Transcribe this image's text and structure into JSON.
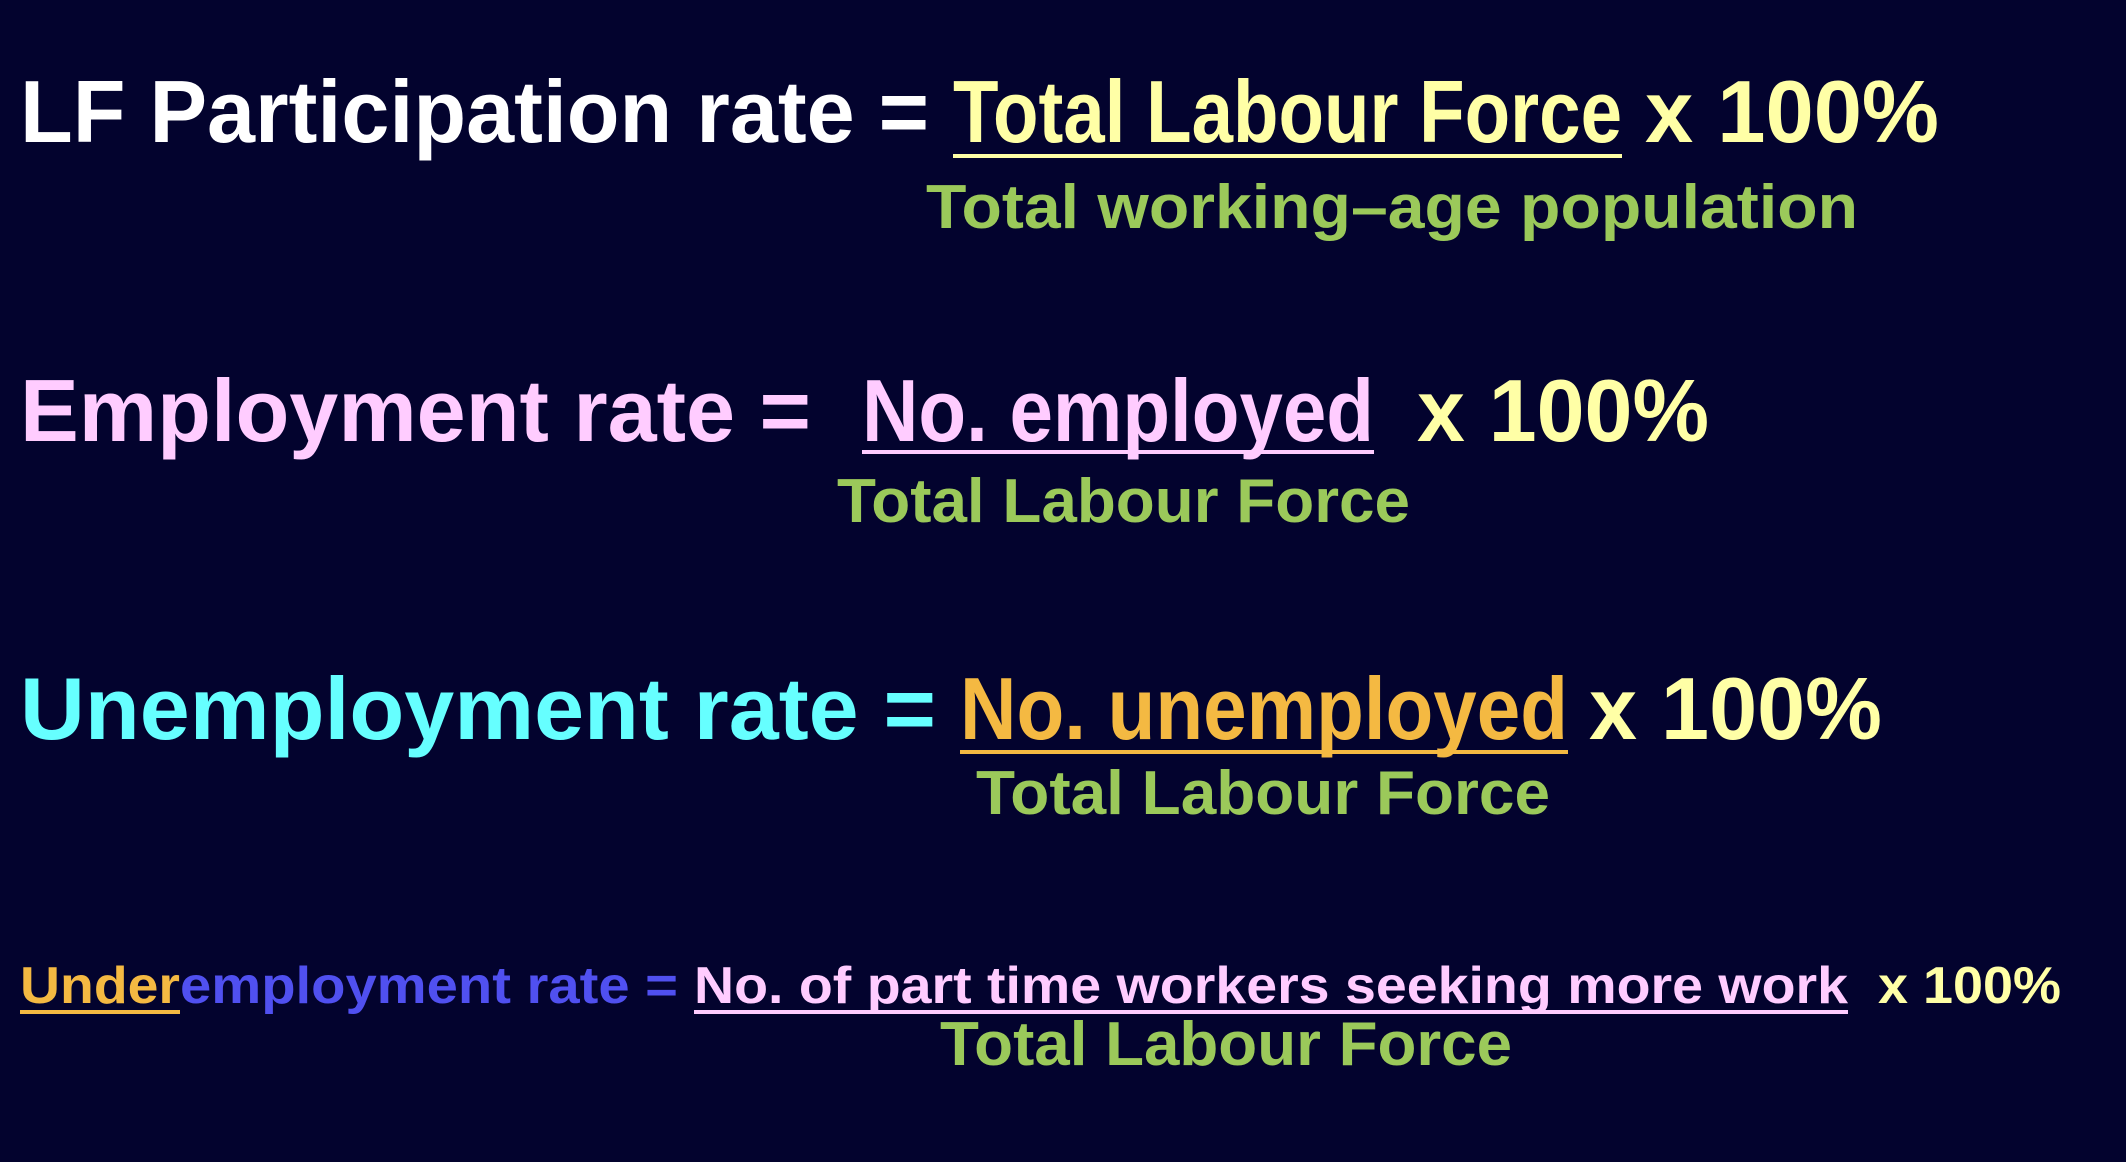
{
  "formulas": [
    {
      "label": "LF Participation rate =",
      "numerator": "Total Labour Force",
      "multiplier": "x 100%",
      "denominator": "Total working–age population"
    },
    {
      "label": "Employment rate =",
      "numerator": "No. employed",
      "multiplier": "x 100%",
      "denominator": "Total Labour Force"
    },
    {
      "label": "Unemployment rate =",
      "numerator": "No. unemployed",
      "multiplier": "x 100%",
      "denominator": "Total Labour Force"
    },
    {
      "label_prefix": "Under",
      "label": "employment rate =",
      "numerator": "No. of part time workers seeking more work",
      "multiplier": "x 100%",
      "denominator": "Total Labour Force"
    }
  ]
}
